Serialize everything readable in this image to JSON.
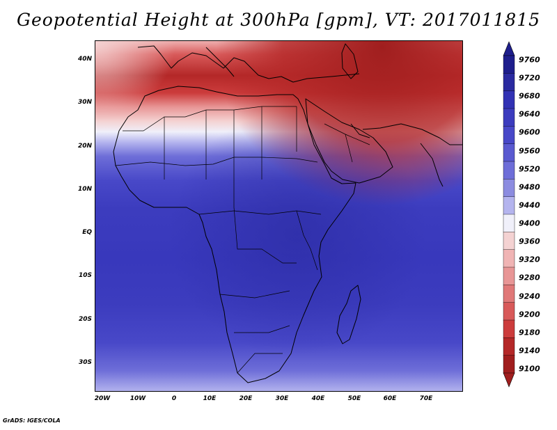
{
  "title": "Geopotential Height at 300hPa [gpm], VT: 2017011815",
  "credit": "GrADS: IGES/COLA",
  "lat_labels": [
    "40N",
    "30N",
    "20N",
    "10N",
    "EQ",
    "10S",
    "20S",
    "30S"
  ],
  "lon_labels": [
    "20W",
    "10W",
    "0",
    "10E",
    "20E",
    "30E",
    "40E",
    "50E",
    "60E",
    "70E"
  ],
  "colorbar": {
    "levels": [
      "9760",
      "9720",
      "9680",
      "9640",
      "9600",
      "9560",
      "9520",
      "9480",
      "9440",
      "9400",
      "9360",
      "9320",
      "9280",
      "9240",
      "9200",
      "9180",
      "9140",
      "9100"
    ],
    "colors": [
      "#1e1e8c",
      "#2a2aa0",
      "#3232b4",
      "#3c3cbe",
      "#4848c8",
      "#5a5ad0",
      "#6e6ed8",
      "#8c8ce0",
      "#b4b4ee",
      "#f0f0fa",
      "#f4d2d2",
      "#f0b4b4",
      "#e89696",
      "#e07878",
      "#d85a5a",
      "#cc3c3c",
      "#b42828",
      "#a01e1e"
    ]
  },
  "map": {
    "region": "Africa, Arabia and Southern Europe",
    "lon_range": [
      -22,
      80
    ],
    "lat_range": [
      -37,
      45
    ]
  }
}
